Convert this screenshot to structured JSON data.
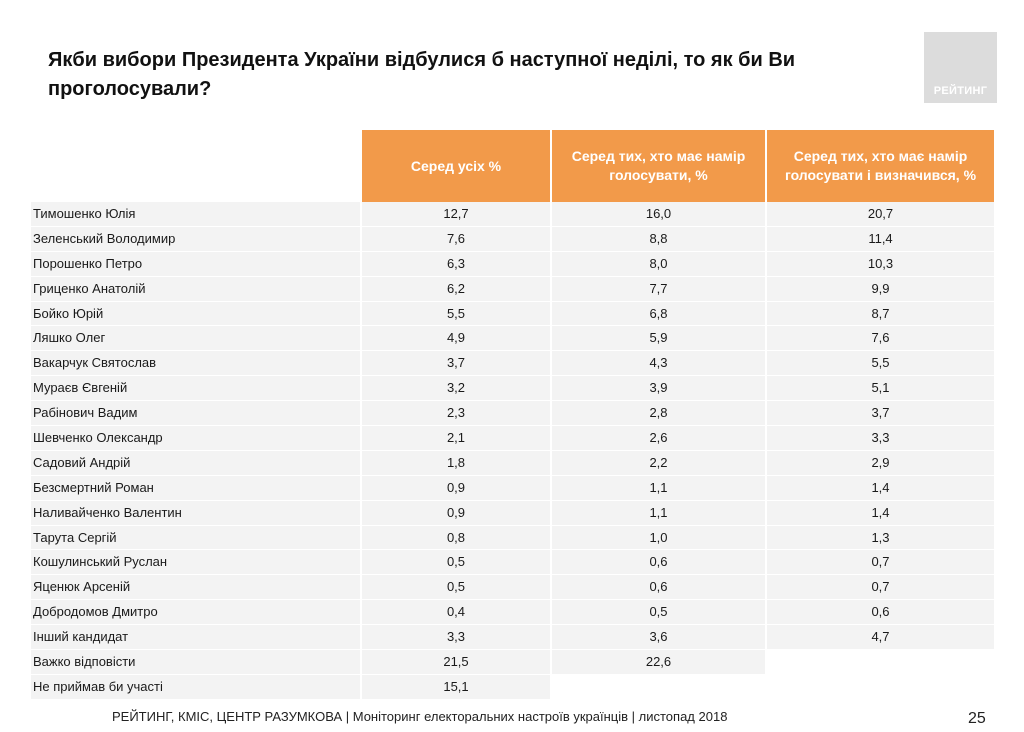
{
  "title": "Якби вибори Президента України відбулися б наступної неділі, то як би Ви проголосували?",
  "logo": {
    "text": "РЕЙТИНГ"
  },
  "table": {
    "headers": [
      "Серед усіх %",
      "Серед тих, хто має намір голосувати, %",
      "Серед тих, хто має намір голосувати і визначився, %"
    ],
    "rows": [
      {
        "name": "Тимошенко Юлія",
        "v": [
          "12,7",
          "16,0",
          "20,7"
        ]
      },
      {
        "name": "Зеленський Володимир",
        "v": [
          "7,6",
          "8,8",
          "11,4"
        ]
      },
      {
        "name": "Порошенко Петро",
        "v": [
          "6,3",
          "8,0",
          "10,3"
        ]
      },
      {
        "name": "Гриценко Анатолій",
        "v": [
          "6,2",
          "7,7",
          "9,9"
        ]
      },
      {
        "name": "Бойко Юрій",
        "v": [
          "5,5",
          "6,8",
          "8,7"
        ]
      },
      {
        "name": "Ляшко Олег",
        "v": [
          "4,9",
          "5,9",
          "7,6"
        ]
      },
      {
        "name": "Вакарчук Святослав",
        "v": [
          "3,7",
          "4,3",
          "5,5"
        ]
      },
      {
        "name": "Мураєв Євгеній",
        "v": [
          "3,2",
          "3,9",
          "5,1"
        ]
      },
      {
        "name": "Рабінович Вадим",
        "v": [
          "2,3",
          "2,8",
          "3,7"
        ]
      },
      {
        "name": "Шевченко Олександр",
        "v": [
          "2,1",
          "2,6",
          "3,3"
        ]
      },
      {
        "name": "Садовий Андрій",
        "v": [
          "1,8",
          "2,2",
          "2,9"
        ]
      },
      {
        "name": "Безсмертний Роман",
        "v": [
          "0,9",
          "1,1",
          "1,4"
        ]
      },
      {
        "name": "Наливайченко Валентин",
        "v": [
          "0,9",
          "1,1",
          "1,4"
        ]
      },
      {
        "name": "Тарута Сергій",
        "v": [
          "0,8",
          "1,0",
          "1,3"
        ]
      },
      {
        "name": "Кошулинський Руслан",
        "v": [
          "0,5",
          "0,6",
          "0,7"
        ]
      },
      {
        "name": "Яценюк Арсеній",
        "v": [
          "0,5",
          "0,6",
          "0,7"
        ]
      },
      {
        "name": "Добродомов Дмитро",
        "v": [
          "0,4",
          "0,5",
          "0,6"
        ]
      },
      {
        "name": "Інший кандидат",
        "v": [
          "3,3",
          "3,6",
          "4,7"
        ]
      },
      {
        "name": "Важко відповісти",
        "v": [
          "21,5",
          "22,6",
          ""
        ]
      },
      {
        "name": "Не приймав би участі",
        "v": [
          "15,1",
          "",
          ""
        ]
      }
    ]
  },
  "footer": "РЕЙТИНГ, КМІС, ЦЕНТР РАЗУМКОВА |  Моніторинг електоральних настроїв українців | листопад 2018",
  "page_number": "25",
  "colors": {
    "header_bg": "#f29a4a",
    "row_bg": "#f3f3f3",
    "logo_bg": "#dcdcdc"
  }
}
